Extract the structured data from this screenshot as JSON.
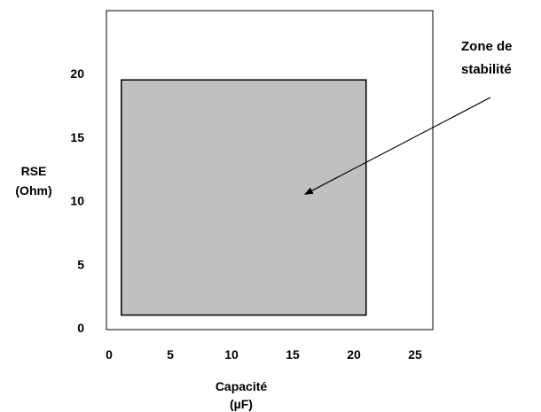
{
  "chart_data": {
    "type": "area",
    "title": "",
    "xlabel_lines": [
      "Capacité",
      "(µF)"
    ],
    "ylabel_lines": [
      "RSE",
      "(Ohm)"
    ],
    "xlim": [
      0,
      25
    ],
    "ylim": [
      0,
      25
    ],
    "x_ticks": [
      "0",
      "5",
      "10",
      "15",
      "20",
      "25"
    ],
    "y_ticks": [
      "0",
      "5",
      "10",
      "15",
      "20"
    ],
    "grid": false,
    "region": {
      "x_min": 1,
      "x_max": 21,
      "y_min": 1,
      "y_max": 19.5,
      "fill": "#c0c0c0",
      "stroke": "#000000"
    },
    "annotation": {
      "lines": [
        "Zone de",
        "stabilité"
      ],
      "target_x": 16,
      "target_y": 10.5
    }
  }
}
